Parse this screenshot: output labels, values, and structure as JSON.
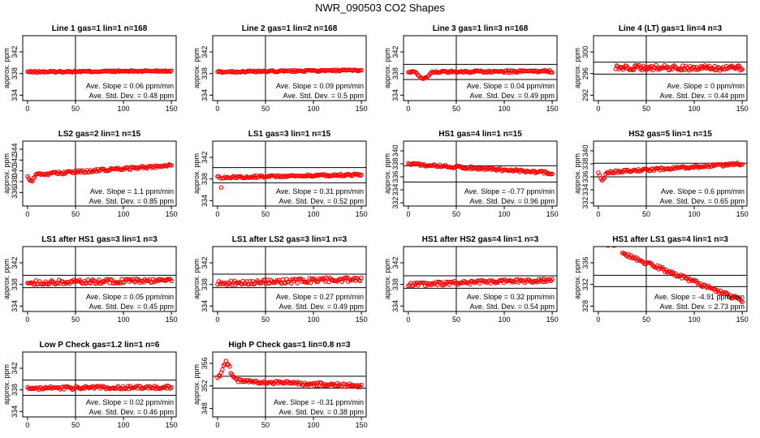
{
  "title": "NWR_090503  CO2 Shapes",
  "colors": {
    "points": "#ff0000",
    "axes": "#000000"
  },
  "chart_data": [
    {
      "type": "scatter",
      "title": "Line 1 gas=1 lin=1 n=168",
      "ylabel": "approx. ppm",
      "xlim": [
        -5,
        155
      ],
      "ylim": [
        333,
        345
      ],
      "yticks": [
        334,
        338,
        342
      ],
      "xticks": [
        0,
        50,
        100,
        150
      ],
      "vline": 50,
      "hlines": [],
      "shape": "flat",
      "start": 338.3,
      "end": 338.5,
      "spread": 0.15,
      "stats": [
        "Ave. Slope = 0.06 ppm/min",
        "Ave. Std. Dev. = 0.48 ppm"
      ]
    },
    {
      "type": "scatter",
      "title": "Line 2 gas=1 lin=2 n=168",
      "ylabel": "approx. ppm",
      "xlim": [
        -5,
        155
      ],
      "ylim": [
        333,
        345
      ],
      "yticks": [
        334,
        338,
        342
      ],
      "xticks": [
        0,
        50,
        100,
        150
      ],
      "vline": 50,
      "hlines": [],
      "shape": "flat",
      "start": 338.3,
      "end": 338.6,
      "spread": 0.15,
      "stats": [
        "Ave. Slope = 0.09 ppm/min",
        "Ave. Std. Dev. = 0.5 ppm"
      ]
    },
    {
      "type": "scatter",
      "title": "Line 3 gas=1 lin=3 n=168",
      "ylabel": "approx. ppm",
      "xlim": [
        -5,
        155
      ],
      "ylim": [
        333,
        345
      ],
      "yticks": [
        334,
        338,
        342
      ],
      "xticks": [
        0,
        50,
        100,
        150
      ],
      "vline": 50,
      "hlines": [
        339.7,
        336.9
      ],
      "shape": "dip",
      "start": 338.3,
      "end": 338.4,
      "spread": 0.2,
      "stats": [
        "Ave. Slope = 0.04 ppm/min",
        "Ave. Std. Dev. = 0.49 ppm"
      ]
    },
    {
      "type": "scatter",
      "title": "Line 4 (LT) gas=1 lin=4 n=3",
      "ylabel": "approx. ppm",
      "xlim": [
        -5,
        155
      ],
      "ylim": [
        291,
        303
      ],
      "yticks": [
        292,
        296,
        300
      ],
      "xticks": [
        0,
        50,
        100,
        150
      ],
      "vline": 50,
      "hlines": [
        298.1,
        295.9
      ],
      "shape": "late",
      "start": 297.1,
      "end": 297.0,
      "spread": 0.45,
      "stats": [
        "Ave. Slope = 0 ppm/min",
        "Ave. Std. Dev. = 0.44 ppm"
      ]
    },
    {
      "type": "scatter",
      "title": "LS2 gas=2 lin=1 n=15",
      "ylabel": "approx. ppm",
      "xlim": [
        -5,
        155
      ],
      "ylim": [
        333.5,
        345.5
      ],
      "yticks": [
        336,
        338,
        340,
        342,
        344
      ],
      "xticks": [
        0,
        50,
        100,
        150
      ],
      "vline": 50,
      "hlines": [],
      "shape": "rise",
      "start": 339.2,
      "end": 341.0,
      "spread": 0.25,
      "stats": [
        "Ave. Slope = 1.1 ppm/min",
        "Ave. Std. Dev. = 0.85 ppm"
      ]
    },
    {
      "type": "scatter",
      "title": "LS1 gas=3 lin=1 n=15",
      "ylabel": "approx. ppm",
      "xlim": [
        -5,
        155
      ],
      "ylim": [
        333,
        345
      ],
      "yticks": [
        334,
        338,
        342
      ],
      "xticks": [
        0,
        50,
        100,
        150
      ],
      "vline": 50,
      "hlines": [
        340.1,
        337.3
      ],
      "shape": "spikes",
      "start": 338.3,
      "end": 338.8,
      "spread": 0.2,
      "stats": [
        "Ave. Slope = 0.31 ppm/min",
        "Ave. Std. Dev. = 0.52 ppm"
      ]
    },
    {
      "type": "scatter",
      "title": "HS1 gas=4 lin=1 n=15",
      "ylabel": "approx. ppm",
      "xlim": [
        -5,
        155
      ],
      "ylim": [
        331.5,
        341.5
      ],
      "yticks": [
        332,
        334,
        336,
        338,
        340
      ],
      "xticks": [
        0,
        50,
        100,
        150
      ],
      "vline": 50,
      "hlines": [
        337.7,
        335.2
      ],
      "shape": "fall",
      "start": 338.0,
      "end": 336.6,
      "spread": 0.2,
      "stats": [
        "Ave. Slope = -0.77 ppm/min",
        "Ave. Std. Dev. = 0.96 ppm"
      ]
    },
    {
      "type": "scatter",
      "title": "HS2 gas=5 lin=1 n=15",
      "ylabel": "approx. ppm",
      "xlim": [
        -5,
        155
      ],
      "ylim": [
        331.5,
        341.5
      ],
      "yticks": [
        332,
        334,
        336,
        338,
        340
      ],
      "xticks": [
        0,
        50,
        100,
        150
      ],
      "vline": 50,
      "hlines": [
        338.1,
        336.0
      ],
      "shape": "rise",
      "start": 336.6,
      "end": 338.0,
      "spread": 0.2,
      "stats": [
        "Ave. Slope = 0.6 ppm/min",
        "Ave. Std. Dev. = 0.65 ppm"
      ]
    },
    {
      "type": "scatter",
      "title": "LS1 after HS1 gas=3 lin=1 n=3",
      "ylabel": "approx. ppm",
      "xlim": [
        -5,
        155
      ],
      "ylim": [
        333,
        345
      ],
      "yticks": [
        334,
        338,
        342
      ],
      "xticks": [
        0,
        50,
        100,
        150
      ],
      "vline": 50,
      "hlines": [
        339.7,
        337.4
      ],
      "shape": "noisy",
      "start": 338.3,
      "end": 338.8,
      "spread": 0.4,
      "stats": [
        "Ave. Slope = 0.05 ppm/min",
        "Ave. Std. Dev. = 0.45 ppm"
      ]
    },
    {
      "type": "scatter",
      "title": "LS1 after LS2 gas=3 lin=1 n=3",
      "ylabel": "approx. ppm",
      "xlim": [
        -5,
        155
      ],
      "ylim": [
        333,
        345
      ],
      "yticks": [
        334,
        338,
        342
      ],
      "xticks": [
        0,
        50,
        100,
        150
      ],
      "vline": 50,
      "hlines": [
        339.9,
        337.4
      ],
      "shape": "noisy",
      "start": 338.2,
      "end": 339.0,
      "spread": 0.45,
      "stats": [
        "Ave. Slope = 0.27 ppm/min",
        "Ave. Std. Dev. = 0.49 ppm"
      ]
    },
    {
      "type": "scatter",
      "title": "HS1 after HS2 gas=4 lin=1 n=3",
      "ylabel": "approx. ppm",
      "xlim": [
        -5,
        155
      ],
      "ylim": [
        333,
        345
      ],
      "yticks": [
        334,
        338,
        342
      ],
      "xticks": [
        0,
        50,
        100,
        150
      ],
      "vline": 50,
      "hlines": [
        339.6,
        337.3
      ],
      "shape": "noisy",
      "start": 338.0,
      "end": 338.8,
      "spread": 0.35,
      "stats": [
        "Ave. Slope = 0.32 ppm/min",
        "Ave. Std. Dev. = 0.54 ppm"
      ]
    },
    {
      "type": "scatter",
      "title": "HS1 after LS1 gas=4 lin=1 n=3",
      "ylabel": "approx. ppm",
      "xlim": [
        -5,
        155
      ],
      "ylim": [
        327,
        339
      ],
      "yticks": [
        328,
        332,
        336
      ],
      "xticks": [
        0,
        50,
        100,
        150
      ],
      "vline": 50,
      "hlines": [
        333.7,
        331.6
      ],
      "shape": "steep",
      "start": 339.5,
      "end": 329.0,
      "spread": 0.35,
      "stats": [
        "Ave. Slope = -4.91 ppm/min",
        "Ave. Std. Dev. = 2.73 ppm"
      ]
    },
    {
      "type": "scatter",
      "title": "Low P Check gas=1.2 lin=1 n=6",
      "ylabel": "approx. ppm",
      "xlim": [
        -5,
        155
      ],
      "ylim": [
        333,
        345
      ],
      "yticks": [
        334,
        338,
        342
      ],
      "xticks": [
        0,
        50,
        100,
        150
      ],
      "vline": 50,
      "hlines": [
        339.8,
        337.0
      ],
      "shape": "noisy",
      "start": 338.3,
      "end": 338.5,
      "spread": 0.3,
      "stats": [
        "Ave. Slope = 0.02 ppm/min",
        "Ave. Std. Dev. = 0.46 ppm"
      ]
    },
    {
      "type": "scatter",
      "title": "High P Check gas=1 lin=0.8 n=3",
      "ylabel": "approx. ppm",
      "xlim": [
        -5,
        155
      ],
      "ylim": [
        346.5,
        358
      ],
      "yticks": [
        348,
        352,
        356
      ],
      "xticks": [
        0,
        50,
        100,
        150
      ],
      "vline": 50,
      "hlines": [
        353.7,
        351.6
      ],
      "shape": "peak",
      "start": 353.0,
      "end": 352.0,
      "spread": 0.3,
      "stats": [
        "Ave. Slope = -0.31 ppm/min",
        "Ave. Std. Dev. = 0.38 ppm"
      ]
    }
  ]
}
